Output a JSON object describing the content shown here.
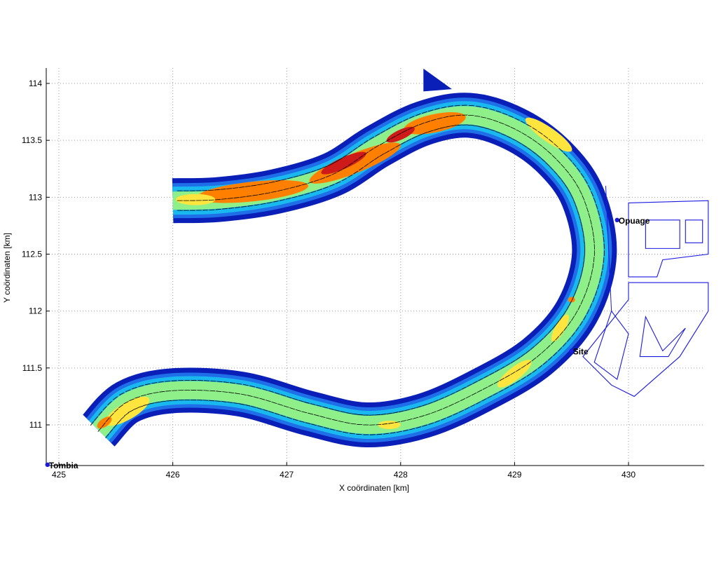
{
  "chart_data": {
    "type": "scatter",
    "xlabel": "X coördinaten [km]",
    "ylabel": "Y coördinaten [km]",
    "xlim": [
      424.9,
      430.7
    ],
    "ylim": [
      110.65,
      114.15
    ],
    "x_ticks": [
      "425",
      "426",
      "427",
      "428",
      "429",
      "430"
    ],
    "y_ticks": [
      "111",
      "111.5",
      "112",
      "112.5",
      "113",
      "113.5",
      "114"
    ],
    "grid": true,
    "places": [
      {
        "name": "Tombia",
        "x": 424.9,
        "y": 110.65
      },
      {
        "name": "Opuage",
        "x": 429.9,
        "y": 112.8
      },
      {
        "name": "Site",
        "x": 429.5,
        "y": 111.65
      }
    ],
    "river_centerline": [
      [
        425.35,
        110.95
      ],
      [
        425.6,
        111.2
      ],
      [
        426.0,
        111.3
      ],
      [
        426.6,
        111.27
      ],
      [
        427.2,
        111.1
      ],
      [
        427.7,
        111.0
      ],
      [
        428.2,
        111.08
      ],
      [
        428.7,
        111.3
      ],
      [
        429.2,
        111.6
      ],
      [
        429.55,
        112.0
      ],
      [
        429.7,
        112.5
      ],
      [
        429.6,
        113.0
      ],
      [
        429.35,
        113.35
      ],
      [
        429.0,
        113.6
      ],
      [
        428.6,
        113.72
      ],
      [
        428.2,
        113.65
      ],
      [
        427.8,
        113.45
      ],
      [
        427.4,
        113.2
      ],
      [
        426.9,
        113.05
      ],
      [
        426.4,
        112.98
      ],
      [
        426.0,
        112.97
      ]
    ],
    "colors": {
      "low_speed": "#0a1fb8",
      "mid_low_speed": "#19b9f0",
      "mid_speed": "#8ff08a",
      "mid_high_speed": "#ffe53d",
      "high_speed": "#ff7f00",
      "max_speed": "#cf1a1a",
      "outline": "#1a1ae0",
      "arrows": "#000000"
    }
  }
}
